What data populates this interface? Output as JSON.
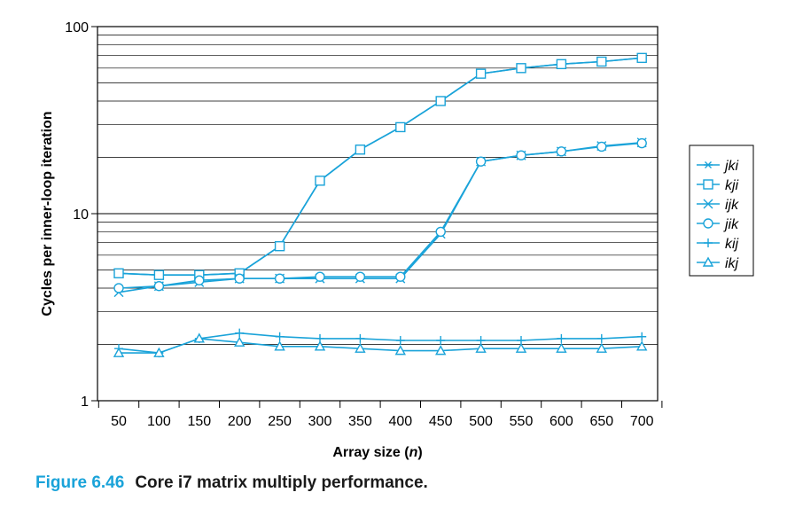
{
  "caption": {
    "number": "Figure 6.46",
    "text": "Core i7 matrix multiply performance."
  },
  "colors": {
    "series": "#1aa3d9",
    "axis": "#000000",
    "grid": "#000000",
    "caption_number": "#1aa3d9"
  },
  "chart_data": {
    "type": "line",
    "xlabel_text": "Array size (",
    "xlabel_var": "n",
    "xlabel_end": ")",
    "ylabel": "Cycles per inner-loop iteration",
    "y_scale": "log",
    "ylim": [
      1,
      100
    ],
    "y_ticks": [
      "1",
      "10",
      "100"
    ],
    "grid": "horizontal minor and major on log scale",
    "legend_position": "right",
    "x": [
      50,
      100,
      150,
      200,
      250,
      300,
      350,
      400,
      450,
      500,
      550,
      600,
      650,
      700
    ],
    "x_tick_labels": [
      "50",
      "100",
      "150",
      "200",
      "250",
      "300",
      "350",
      "400",
      "450",
      "500",
      "550",
      "600",
      "650",
      "700"
    ],
    "series": [
      {
        "name": "jki",
        "marker": "asterisk",
        "values": [
          4.8,
          4.7,
          4.7,
          4.8,
          6.7,
          15,
          22,
          29,
          40,
          56,
          60,
          63,
          65,
          68
        ]
      },
      {
        "name": "kji",
        "marker": "square",
        "values": [
          4.8,
          4.7,
          4.7,
          4.8,
          6.7,
          15,
          22,
          29,
          40,
          56,
          60,
          63,
          65,
          68
        ]
      },
      {
        "name": "ijk",
        "marker": "x",
        "values": [
          3.8,
          4.1,
          4.3,
          4.5,
          4.5,
          4.5,
          4.5,
          4.5,
          7.8,
          19,
          20.5,
          21.5,
          23,
          24
        ]
      },
      {
        "name": "jik",
        "marker": "circle",
        "values": [
          4.0,
          4.1,
          4.4,
          4.5,
          4.5,
          4.6,
          4.6,
          4.6,
          8.0,
          19,
          20.5,
          21.5,
          22.8,
          23.8
        ]
      },
      {
        "name": "kij",
        "marker": "plus",
        "values": [
          1.9,
          1.8,
          2.15,
          2.3,
          2.2,
          2.15,
          2.15,
          2.1,
          2.1,
          2.1,
          2.1,
          2.15,
          2.15,
          2.2
        ]
      },
      {
        "name": "ikj",
        "marker": "triangle",
        "values": [
          1.8,
          1.8,
          2.15,
          2.05,
          1.95,
          1.95,
          1.9,
          1.85,
          1.85,
          1.9,
          1.9,
          1.9,
          1.9,
          1.95
        ]
      }
    ]
  }
}
